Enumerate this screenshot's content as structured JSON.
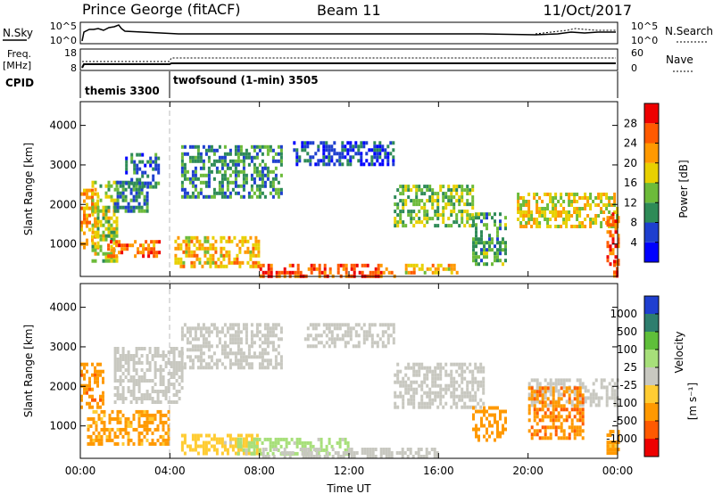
{
  "header": {
    "title": "Prince George (fitACF)",
    "beam": "Beam 11",
    "date": "11/Oct/2017"
  },
  "top_strip": {
    "nsky_label": "N.Sky",
    "nsearch_label": "N.Search",
    "freq_label": "Freq.",
    "freq_unit": "[MHz]",
    "nave_label": "Nave",
    "cpid_label": "CPID",
    "left_ticks_a": [
      "10^5",
      "10^0"
    ],
    "right_ticks_a": [
      "10^5",
      "10^0"
    ],
    "left_ticks_b": [
      "18",
      "8"
    ],
    "right_ticks_b": [
      "60",
      "0"
    ],
    "cpid_segments": [
      {
        "name": "themis 3300",
        "start_hour": 0,
        "end_hour": 4
      },
      {
        "name": "twofsound (1-min) 3505",
        "start_hour": 4,
        "end_hour": 24
      }
    ]
  },
  "x_axis": {
    "label": "Time UT",
    "ticks": [
      "00:00",
      "04:00",
      "08:00",
      "12:00",
      "16:00",
      "20:00",
      "00:00"
    ]
  },
  "power_colorbar": {
    "label": "Power [dB]",
    "ticks": [
      "4",
      "8",
      "12",
      "16",
      "20",
      "24",
      "28"
    ],
    "colors": [
      "#0000ff",
      "#1e3fcf",
      "#2e8b57",
      "#6dbb3a",
      "#e8d000",
      "#ff9900",
      "#ff5a00",
      "#ee0000"
    ]
  },
  "velocity_colorbar": {
    "label": "Velocity",
    "unit": "[m s⁻¹]",
    "ticks": [
      "1000",
      "500",
      "100",
      "25",
      "-25",
      "-100",
      "-500",
      "-1000"
    ],
    "colors": [
      "#1f3fd0",
      "#2e7e6e",
      "#5fbf3a",
      "#a7df7a",
      "#c8c8c0",
      "#ffcc33",
      "#ff9900",
      "#ff5a00",
      "#ee0000"
    ]
  },
  "chart_data": [
    {
      "type": "heatmap",
      "name": "power",
      "ylabel": "Slant Range [km]",
      "xlabel": "",
      "xlim_hours": [
        0,
        24
      ],
      "ylim_km": [
        180,
        4600
      ],
      "yticks": [
        "1000",
        "2000",
        "3000",
        "4000"
      ],
      "regions": [
        {
          "t0": 0.0,
          "t1": 0.8,
          "r0": 900,
          "r1": 2400,
          "value": 22
        },
        {
          "t0": 0.5,
          "t1": 1.6,
          "r0": 600,
          "r1": 2600,
          "value": 16
        },
        {
          "t0": 1.2,
          "t1": 3.5,
          "r0": 700,
          "r1": 1100,
          "value": 24
        },
        {
          "t0": 1.5,
          "t1": 3.0,
          "r0": 1800,
          "r1": 2600,
          "value": 10
        },
        {
          "t0": 2.0,
          "t1": 3.5,
          "r0": 2400,
          "r1": 3300,
          "value": 8
        },
        {
          "t0": 4.2,
          "t1": 8.0,
          "r0": 400,
          "r1": 1200,
          "value": 20
        },
        {
          "t0": 4.5,
          "t1": 9.0,
          "r0": 2200,
          "r1": 3500,
          "value": 10
        },
        {
          "t0": 8.0,
          "t1": 14.0,
          "r0": 200,
          "r1": 500,
          "value": 26
        },
        {
          "t0": 9.5,
          "t1": 14.0,
          "r0": 3000,
          "r1": 3600,
          "value": 6
        },
        {
          "t0": 14.0,
          "t1": 17.5,
          "r0": 1500,
          "r1": 2500,
          "value": 14
        },
        {
          "t0": 14.5,
          "t1": 17.0,
          "r0": 250,
          "r1": 500,
          "value": 20
        },
        {
          "t0": 17.5,
          "t1": 19.0,
          "r0": 500,
          "r1": 1800,
          "value": 12
        },
        {
          "t0": 19.5,
          "t1": 24.0,
          "r0": 1400,
          "r1": 2300,
          "value": 18
        },
        {
          "t0": 23.5,
          "t1": 24.0,
          "r0": 500,
          "r1": 1800,
          "value": 26
        },
        {
          "t0": 23.8,
          "t1": 24.0,
          "r0": 200,
          "r1": 600,
          "value": 28
        }
      ]
    },
    {
      "type": "heatmap",
      "name": "velocity",
      "ylabel": "Slant Range [km]",
      "xlabel": "Time UT",
      "xlim_hours": [
        0,
        24
      ],
      "ylim_km": [
        180,
        4600
      ],
      "yticks": [
        "1000",
        "2000",
        "3000",
        "4000"
      ],
      "regions": [
        {
          "t0": 0.0,
          "t1": 1.0,
          "r0": 1500,
          "r1": 2600,
          "value": -400
        },
        {
          "t0": 0.3,
          "t1": 4.0,
          "r0": 500,
          "r1": 1400,
          "value": -150
        },
        {
          "t0": 1.5,
          "t1": 4.5,
          "r0": 1600,
          "r1": 3000,
          "value": 0
        },
        {
          "t0": 4.5,
          "t1": 9.0,
          "r0": 2500,
          "r1": 3600,
          "value": 0
        },
        {
          "t0": 4.5,
          "t1": 8.0,
          "r0": 300,
          "r1": 800,
          "value": -60
        },
        {
          "t0": 7.0,
          "t1": 12.0,
          "r0": 300,
          "r1": 700,
          "value": 60
        },
        {
          "t0": 10.0,
          "t1": 14.0,
          "r0": 3000,
          "r1": 3600,
          "value": 0
        },
        {
          "t0": 8.0,
          "t1": 16.0,
          "r0": 200,
          "r1": 450,
          "value": 0
        },
        {
          "t0": 14.0,
          "t1": 18.0,
          "r0": 1500,
          "r1": 2600,
          "value": 0
        },
        {
          "t0": 17.5,
          "t1": 19.0,
          "r0": 600,
          "r1": 1500,
          "value": -200
        },
        {
          "t0": 20.0,
          "t1": 24.0,
          "r0": 1500,
          "r1": 2200,
          "value": 0
        },
        {
          "t0": 20.0,
          "t1": 22.5,
          "r0": 700,
          "r1": 2000,
          "value": -450
        },
        {
          "t0": 23.5,
          "t1": 24.0,
          "r0": 300,
          "r1": 900,
          "value": -150
        }
      ]
    }
  ]
}
